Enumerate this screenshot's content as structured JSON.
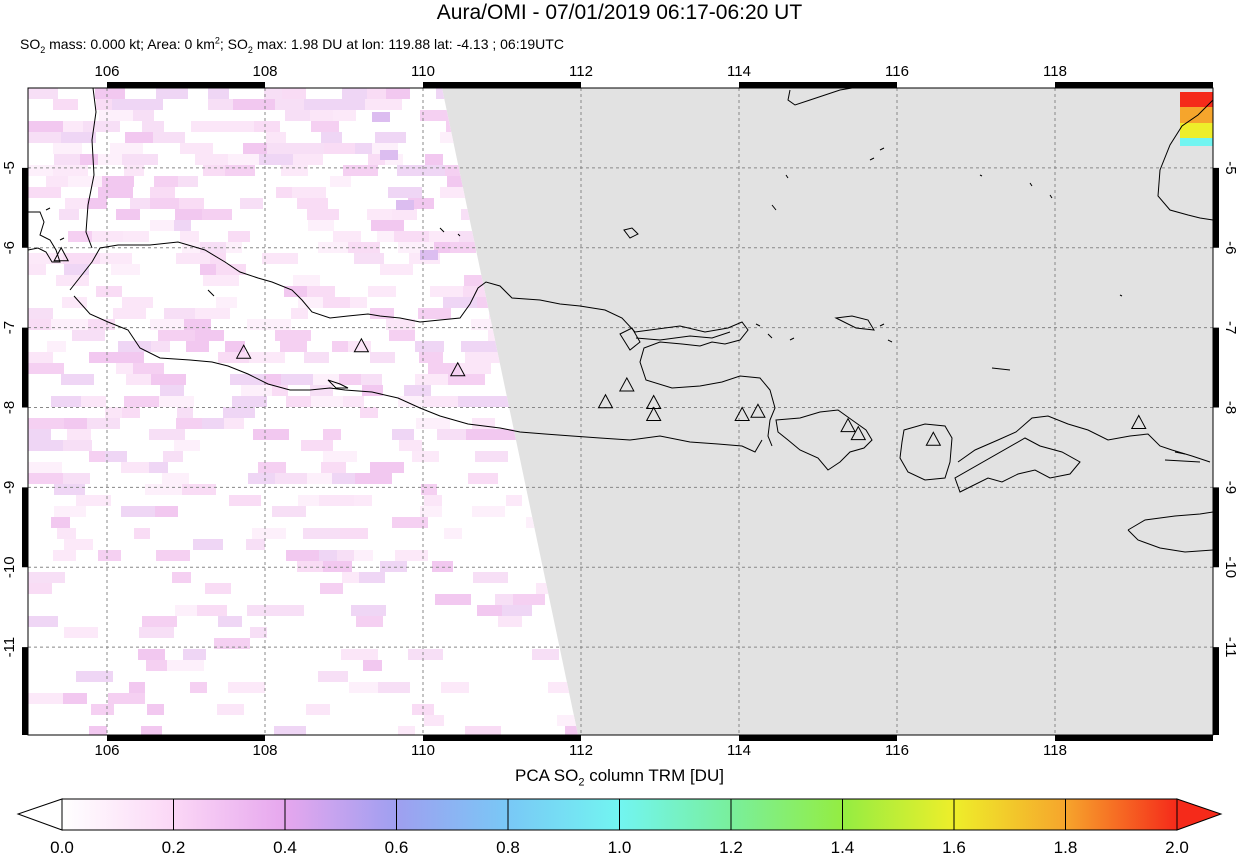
{
  "header": {
    "title": "Aura/OMI - 07/01/2019 06:17-06:20 UT",
    "subtitle": {
      "mass_prefix": "SO",
      "mass_sub": "2",
      "mass_text": " mass: 0.000 kt; Area: 0 km",
      "area_sup": "2",
      "max_prefix": "; SO",
      "max_sub": "2",
      "max_text": " max: 1.98 DU at lon: 119.88 lat: -4.13 ; 06:19UTC"
    }
  },
  "map": {
    "lon_ticks": [
      "106",
      "108",
      "110",
      "112",
      "114",
      "116",
      "118"
    ],
    "lat_ticks": [
      "-5",
      "-6",
      "-7",
      "-8",
      "-9",
      "-10",
      "-11"
    ],
    "lon_range": [
      105,
      120
    ],
    "lat_range": [
      -12.1,
      -4.0
    ],
    "no_data_color": "#e2e2e2",
    "coast_color": "#000000",
    "grid_style": "dashed",
    "volcanoes": [
      {
        "lon": 105.42,
        "lat": -6.1
      },
      {
        "lon": 107.73,
        "lat": -7.32
      },
      {
        "lon": 109.22,
        "lat": -7.24
      },
      {
        "lon": 110.44,
        "lat": -7.54
      },
      {
        "lon": 112.31,
        "lat": -7.94
      },
      {
        "lon": 112.58,
        "lat": -7.73
      },
      {
        "lon": 112.92,
        "lat": -7.95
      },
      {
        "lon": 112.92,
        "lat": -8.1
      },
      {
        "lon": 114.04,
        "lat": -8.1
      },
      {
        "lon": 114.24,
        "lat": -8.06
      },
      {
        "lon": 115.38,
        "lat": -8.24
      },
      {
        "lon": 115.51,
        "lat": -8.34
      },
      {
        "lon": 116.46,
        "lat": -8.41
      },
      {
        "lon": 119.06,
        "lat": -8.2
      }
    ]
  },
  "colorbar": {
    "title_prefix": "PCA SO",
    "title_sub": "2",
    "title_suffix": " column TRM [DU]",
    "ticks": [
      "0.0",
      "0.2",
      "0.4",
      "0.6",
      "0.8",
      "1.0",
      "1.2",
      "1.4",
      "1.6",
      "1.8",
      "2.0"
    ],
    "range": [
      0.0,
      2.0
    ],
    "colors": [
      "#ffffff",
      "#fbd7f6",
      "#e6a7ee",
      "#9f9ff0",
      "#79c8f6",
      "#72f5f1",
      "#79ef9c",
      "#94ed42",
      "#eeee2a",
      "#f6a52c",
      "#f52a1a"
    ]
  }
}
